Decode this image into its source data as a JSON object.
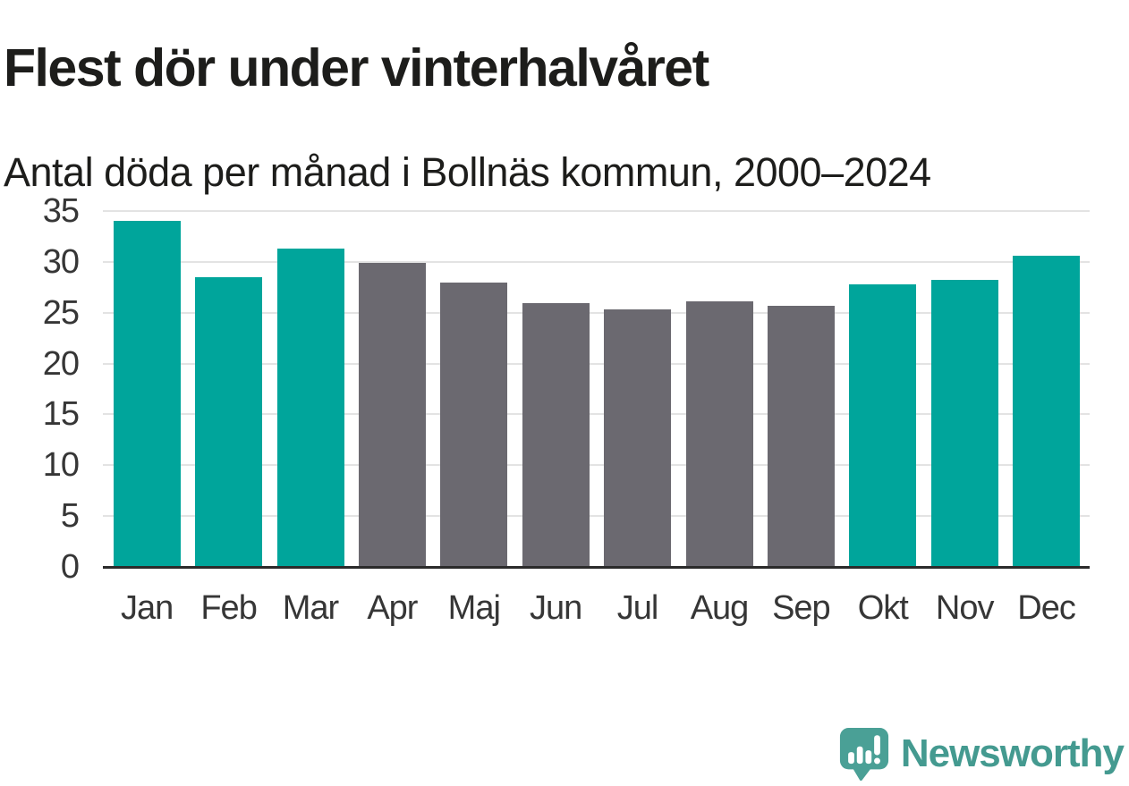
{
  "header": {
    "title": "Flest dör under vinterhalvåret",
    "subtitle": "Antal döda per månad i Bollnäs kommun, 2000–2024"
  },
  "chart_data": {
    "type": "bar",
    "title": "Flest dör under vinterhalvåret",
    "subtitle": "Antal döda per månad i Bollnäs kommun, 2000–2024",
    "categories": [
      "Jan",
      "Feb",
      "Mar",
      "Apr",
      "Maj",
      "Jun",
      "Jul",
      "Aug",
      "Sep",
      "Okt",
      "Nov",
      "Dec"
    ],
    "values": [
      34.0,
      28.5,
      31.3,
      29.9,
      28.0,
      25.9,
      25.3,
      26.1,
      25.7,
      27.8,
      28.2,
      30.6
    ],
    "highlighted": [
      true,
      true,
      true,
      false,
      false,
      false,
      false,
      false,
      false,
      true,
      true,
      true
    ],
    "xlabel": "",
    "ylabel": "",
    "ylim": [
      0,
      35
    ],
    "yticks": [
      0,
      5,
      10,
      15,
      20,
      25,
      30,
      35
    ],
    "grid": "horizontal-light-gray",
    "legend": "none",
    "colors": {
      "highlight_bar": "#00a59b",
      "default_bar": "#6b6970",
      "gridline": "#e3e3e3",
      "axis_line": "#2b2b2b",
      "tick_label": "#363636",
      "text": "#1d1d1b"
    }
  },
  "footer": {
    "brand": "Newsworthy",
    "brand_color": "#449a90",
    "logo_icon": "newsworthy-speech-bubble-bar-chart-icon",
    "logo_icon_color": "#4aa096"
  }
}
